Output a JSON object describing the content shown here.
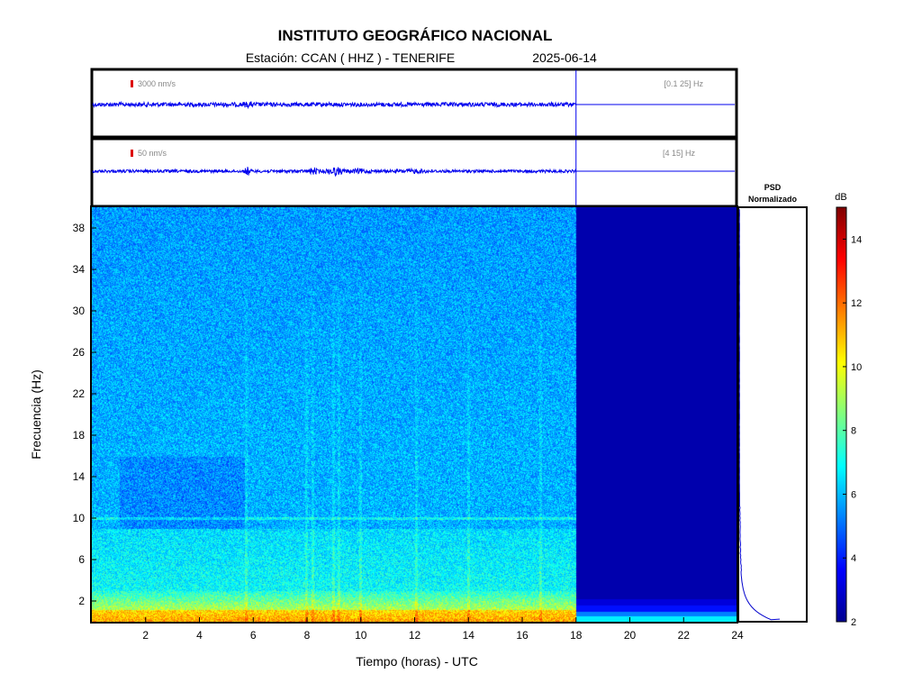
{
  "header": {
    "title": "INSTITUTO GEOGRÁFICO NACIONAL",
    "station_label": "Estación:  CCAN ( HHZ ) - TENERIFE",
    "date": "2025-06-14"
  },
  "chart_data": {
    "type": "heatmap",
    "traces": [
      {
        "scale": "3000 nm/s",
        "band": "[0.1 25] Hz",
        "data_end_hour": 18
      },
      {
        "scale": "50 nm/s",
        "band": "[4 15] Hz",
        "data_end_hour": 18
      }
    ],
    "spectrogram": {
      "xlabel": "Tiempo (horas) - UTC",
      "ylabel": "Frecuencia  (Hz)",
      "xlim": [
        0,
        24
      ],
      "ylim": [
        0,
        40
      ],
      "x_ticks": [
        2,
        4,
        6,
        8,
        10,
        12,
        14,
        16,
        18,
        20,
        22,
        24
      ],
      "y_ticks": [
        2,
        6,
        10,
        14,
        18,
        22,
        26,
        30,
        34,
        38
      ],
      "data_end_hour": 18
    },
    "psd": {
      "title_line1": "PSD",
      "title_line2": "Normalizado"
    },
    "colorbar": {
      "label": "dB",
      "range": [
        2,
        15
      ],
      "ticks": [
        2,
        4,
        6,
        8,
        10,
        12,
        14
      ],
      "colormap": "jet"
    }
  },
  "colors": {
    "trace": "#0000ee",
    "scale_marker": "#dd0000",
    "frame": "#000000"
  }
}
